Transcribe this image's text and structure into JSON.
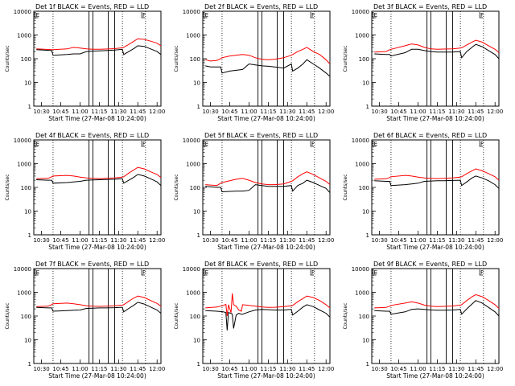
{
  "chart_data": {
    "type": "line",
    "y_scale": "log",
    "ylim": [
      1,
      10000
    ],
    "x_ticks": [
      "10:30",
      "10:45",
      "11:00",
      "11:15",
      "11:30",
      "11:45",
      "12:00"
    ],
    "y_ticks": [
      "1",
      "10",
      "100",
      "1000",
      "10000"
    ],
    "ylabel": "Counts/sec",
    "xlabel": "Start Time (27-Mar-08 10:24:00)",
    "colors": {
      "events": "#000000",
      "lld": "#ff0000"
    },
    "flag_labels": [
      "E",
      "F"
    ],
    "panels": [
      {
        "title": "Det 1f BLACK = Events, RED = LLD",
        "x": [
          "10:26",
          "10:38",
          "10:39",
          "10:50",
          "10:55",
          "11:00",
          "11:05",
          "11:10",
          "11:15",
          "11:20",
          "11:27",
          "11:33",
          "11:34",
          "11:38",
          "11:42",
          "11:45",
          "11:50",
          "11:55",
          "12:00",
          "12:03"
        ],
        "lld": [
          260,
          240,
          240,
          260,
          300,
          280,
          260,
          250,
          250,
          255,
          265,
          290,
          300,
          400,
          550,
          700,
          650,
          550,
          450,
          350
        ],
        "events": [
          240,
          220,
          140,
          150,
          160,
          160,
          200,
          210,
          215,
          220,
          230,
          250,
          150,
          200,
          270,
          350,
          330,
          260,
          200,
          150
        ]
      },
      {
        "title": "Det 2f BLACK = Events, RED = LLD",
        "x": [
          "10:26",
          "10:30",
          "10:35",
          "10:38",
          "10:39",
          "10:45",
          "10:55",
          "11:00",
          "11:05",
          "11:10",
          "11:15",
          "11:20",
          "11:27",
          "11:33",
          "11:34",
          "11:38",
          "11:42",
          "11:45",
          "11:50",
          "11:55",
          "12:00",
          "12:03"
        ],
        "lld": [
          90,
          80,
          85,
          100,
          110,
          130,
          150,
          140,
          110,
          95,
          90,
          95,
          110,
          140,
          150,
          200,
          250,
          300,
          200,
          150,
          90,
          60
        ],
        "events": [
          50,
          45,
          45,
          45,
          25,
          30,
          35,
          60,
          55,
          50,
          48,
          45,
          40,
          60,
          30,
          40,
          60,
          90,
          60,
          40,
          25,
          18
        ]
      },
      {
        "title": "Det 3f BLACK = Events, RED = LLD",
        "x": [
          "10:26",
          "10:35",
          "10:38",
          "10:39",
          "10:50",
          "10:55",
          "11:00",
          "11:05",
          "11:10",
          "11:15",
          "11:20",
          "11:27",
          "11:33",
          "11:34",
          "11:38",
          "11:42",
          "11:45",
          "11:50",
          "11:55",
          "12:00",
          "12:03"
        ],
        "lld": [
          190,
          200,
          240,
          250,
          350,
          420,
          380,
          300,
          260,
          250,
          255,
          260,
          280,
          290,
          380,
          500,
          600,
          500,
          350,
          250,
          180
        ],
        "events": [
          160,
          150,
          150,
          130,
          180,
          250,
          250,
          220,
          200,
          190,
          190,
          190,
          200,
          110,
          200,
          300,
          400,
          320,
          220,
          150,
          100
        ]
      },
      {
        "title": "Det 4f BLACK = Events, RED = LLD",
        "x": [
          "10:26",
          "10:35",
          "10:38",
          "10:39",
          "10:50",
          "10:55",
          "11:00",
          "11:05",
          "11:10",
          "11:15",
          "11:20",
          "11:27",
          "11:33",
          "11:34",
          "11:38",
          "11:42",
          "11:45",
          "11:50",
          "11:55",
          "12:00",
          "12:03"
        ],
        "lld": [
          230,
          240,
          280,
          300,
          320,
          300,
          270,
          250,
          240,
          235,
          240,
          250,
          270,
          280,
          400,
          550,
          700,
          600,
          450,
          350,
          260
        ],
        "events": [
          210,
          200,
          200,
          150,
          160,
          170,
          180,
          200,
          205,
          210,
          215,
          220,
          230,
          150,
          200,
          270,
          350,
          300,
          230,
          170,
          120
        ]
      },
      {
        "title": "Det 5f BLACK = Events, RED = LLD",
        "x": [
          "10:26",
          "10:35",
          "10:38",
          "10:39",
          "10:50",
          "10:55",
          "11:00",
          "11:05",
          "11:10",
          "11:15",
          "11:20",
          "11:27",
          "11:33",
          "11:34",
          "11:38",
          "11:42",
          "11:45",
          "11:50",
          "11:55",
          "12:00",
          "12:03"
        ],
        "lld": [
          130,
          120,
          150,
          160,
          220,
          240,
          200,
          160,
          140,
          130,
          130,
          140,
          180,
          190,
          280,
          380,
          450,
          350,
          250,
          180,
          130
        ],
        "events": [
          110,
          100,
          100,
          65,
          70,
          70,
          75,
          130,
          120,
          110,
          110,
          110,
          120,
          70,
          120,
          150,
          200,
          160,
          120,
          90,
          60
        ]
      },
      {
        "title": "Det 6f BLACK = Events, RED = LLD",
        "x": [
          "10:26",
          "10:35",
          "10:38",
          "10:39",
          "10:50",
          "10:55",
          "11:00",
          "11:05",
          "11:10",
          "11:15",
          "11:20",
          "11:27",
          "11:33",
          "11:34",
          "11:38",
          "11:42",
          "11:45",
          "11:50",
          "11:55",
          "12:00",
          "12:03"
        ],
        "lld": [
          220,
          230,
          260,
          280,
          320,
          300,
          270,
          250,
          240,
          235,
          240,
          250,
          270,
          280,
          380,
          500,
          600,
          500,
          380,
          280,
          200
        ],
        "events": [
          190,
          180,
          180,
          120,
          130,
          140,
          150,
          180,
          185,
          190,
          190,
          195,
          200,
          120,
          170,
          250,
          300,
          250,
          190,
          130,
          90
        ]
      },
      {
        "title": "Det 7f BLACK = Events, RED = LLD",
        "x": [
          "10:26",
          "10:35",
          "10:38",
          "10:39",
          "10:50",
          "10:55",
          "11:00",
          "11:05",
          "11:10",
          "11:15",
          "11:20",
          "11:27",
          "11:33",
          "11:34",
          "11:38",
          "11:42",
          "11:45",
          "11:50",
          "11:55",
          "12:00",
          "12:03"
        ],
        "lld": [
          250,
          260,
          300,
          330,
          350,
          330,
          300,
          270,
          260,
          255,
          260,
          270,
          290,
          300,
          420,
          580,
          700,
          600,
          450,
          340,
          260
        ],
        "events": [
          230,
          220,
          220,
          160,
          170,
          175,
          180,
          210,
          215,
          220,
          220,
          225,
          235,
          150,
          210,
          290,
          380,
          320,
          240,
          180,
          130
        ]
      },
      {
        "title": "Det 8f BLACK = Events, RED = LLD",
        "x": [
          "10:26",
          "10:35",
          "10:40",
          "10:42",
          "10:43",
          "10:44",
          "10:46",
          "10:47",
          "10:48",
          "10:50",
          "10:52",
          "10:54",
          "10:55",
          "11:00",
          "11:05",
          "11:10",
          "11:15",
          "11:20",
          "11:27",
          "11:33",
          "11:34",
          "11:38",
          "11:42",
          "11:45",
          "11:50",
          "11:55",
          "12:00",
          "12:03"
        ],
        "lld": [
          220,
          240,
          280,
          310,
          100,
          300,
          140,
          900,
          300,
          260,
          180,
          160,
          300,
          280,
          260,
          240,
          230,
          235,
          250,
          270,
          280,
          400,
          550,
          700,
          600,
          450,
          300,
          220
        ],
        "events": [
          170,
          160,
          150,
          140,
          25,
          140,
          130,
          120,
          30,
          110,
          130,
          120,
          120,
          150,
          180,
          190,
          185,
          180,
          180,
          190,
          110,
          160,
          240,
          300,
          250,
          180,
          130,
          90
        ]
      },
      {
        "title": "Det 9f BLACK = Events, RED = LLD",
        "x": [
          "10:26",
          "10:35",
          "10:38",
          "10:39",
          "10:50",
          "10:55",
          "11:00",
          "11:05",
          "11:10",
          "11:15",
          "11:20",
          "11:27",
          "11:33",
          "11:34",
          "11:38",
          "11:42",
          "11:45",
          "11:50",
          "11:55",
          "12:00",
          "12:03"
        ],
        "lld": [
          220,
          230,
          260,
          280,
          350,
          400,
          350,
          290,
          260,
          250,
          255,
          265,
          290,
          300,
          450,
          650,
          800,
          650,
          450,
          300,
          210
        ],
        "events": [
          170,
          160,
          160,
          120,
          150,
          190,
          200,
          190,
          180,
          175,
          175,
          180,
          190,
          120,
          200,
          320,
          450,
          350,
          230,
          150,
          100
        ]
      }
    ]
  }
}
